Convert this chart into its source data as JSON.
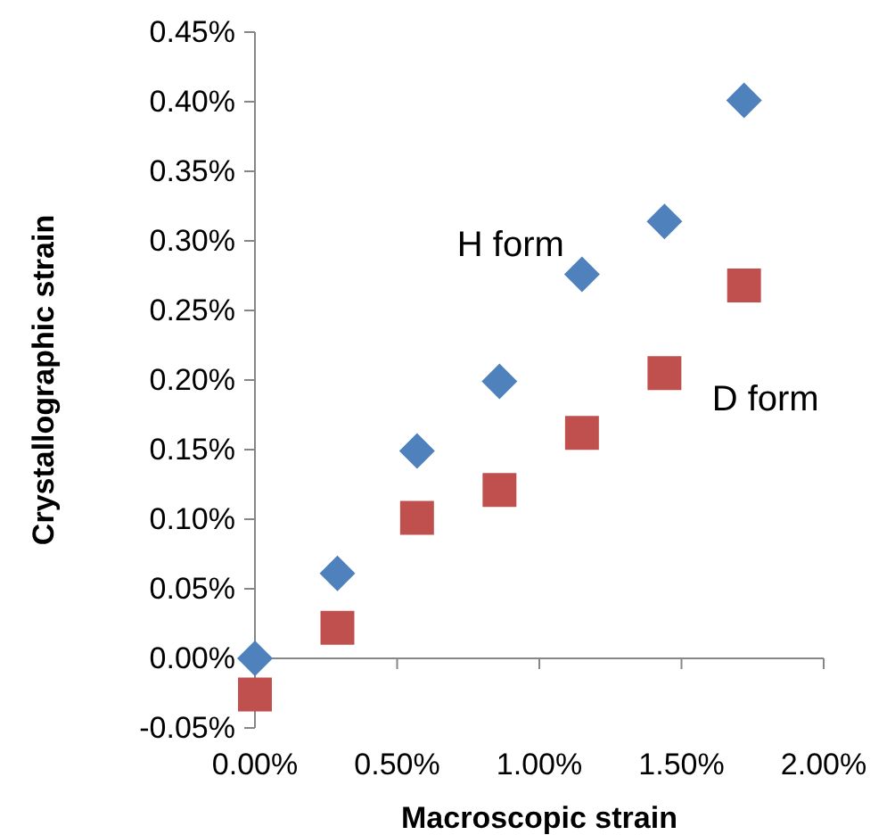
{
  "chart_data": {
    "type": "scatter",
    "xlabel": "Macroscopic strain",
    "ylabel": "Crystallographic strain",
    "xlim": [
      0,
      2
    ],
    "xticks": [
      {
        "value": 0,
        "label": "0.00%"
      },
      {
        "value": 0.5,
        "label": "0.50%"
      },
      {
        "value": 1,
        "label": "1.00%"
      },
      {
        "value": 1.5,
        "label": "1.50%"
      },
      {
        "value": 2,
        "label": "2.00%"
      }
    ],
    "ylim": [
      -0.05,
      0.45
    ],
    "yticks": [
      {
        "value": -0.05,
        "label": "-0.05%"
      },
      {
        "value": 0,
        "label": "0.00%"
      },
      {
        "value": 0.05,
        "label": "0.05%"
      },
      {
        "value": 0.1,
        "label": "0.10%"
      },
      {
        "value": 0.15,
        "label": "0.15%"
      },
      {
        "value": 0.2,
        "label": "0.20%"
      },
      {
        "value": 0.25,
        "label": "0.25%"
      },
      {
        "value": 0.3,
        "label": "0.30%"
      },
      {
        "value": 0.35,
        "label": "0.35%"
      },
      {
        "value": 0.4,
        "label": "0.40%"
      },
      {
        "value": 0.45,
        "label": "0.45%"
      }
    ],
    "series": [
      {
        "name": "H form",
        "color": "#4f81bd",
        "marker": "diamond",
        "x": [
          0,
          0.29,
          0.57,
          0.86,
          1.15,
          1.44,
          1.72
        ],
        "values": [
          0,
          0.061,
          0.149,
          0.199,
          0.276,
          0.314,
          0.401
        ]
      },
      {
        "name": "D form",
        "color": "#c0504d",
        "marker": "square",
        "x": [
          0,
          0.29,
          0.57,
          0.86,
          1.15,
          1.44,
          1.72
        ],
        "values": [
          -0.026,
          0.022,
          0.101,
          0.121,
          0.162,
          0.205,
          0.268
        ]
      }
    ]
  }
}
